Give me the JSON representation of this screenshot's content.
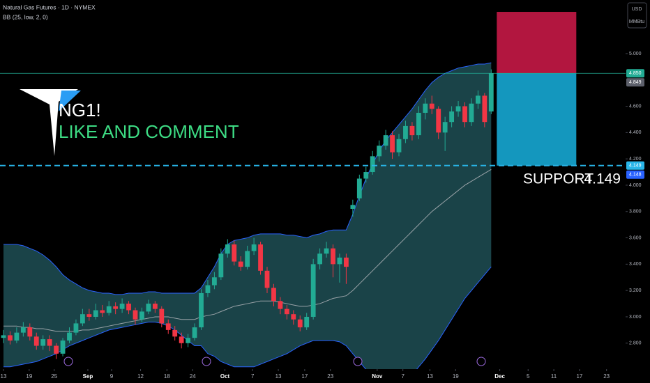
{
  "chart_data": {
    "type": "candlestick",
    "title": "Natural Gas Futures · 1D · NYMEX",
    "indicator": "BB (25, low, 2, 0)",
    "symbol": "NG1!",
    "annotation": "LIKE AND COMMENT",
    "support": {
      "label": "SUPPORT",
      "value": 4.149,
      "color": "#29b6e8"
    },
    "currency": "USD",
    "unit": "MMBtu",
    "up_color": "#22ab94",
    "down_color": "#f23645",
    "open": [
      2.84,
      2.86,
      2.82,
      2.88,
      2.92,
      2.85,
      2.78,
      2.83,
      2.78,
      2.72,
      2.82,
      2.88,
      2.95,
      3.02,
      3.0,
      3.05,
      3.03,
      3.08,
      3.06,
      3.1,
      3.05,
      2.98,
      3.04,
      3.1,
      3.06,
      2.95,
      2.9,
      2.85,
      2.8,
      2.84,
      2.92,
      3.18,
      3.24,
      3.3,
      3.48,
      3.55,
      3.42,
      3.38,
      3.5,
      3.55,
      3.35,
      3.22,
      3.12,
      3.06,
      3.02,
      2.98,
      2.92,
      3.0,
      3.4,
      3.48,
      3.52,
      3.4,
      3.45,
      3.82,
      3.9,
      4.05,
      4.1,
      4.22,
      4.3,
      4.38,
      4.25,
      4.35,
      4.45,
      4.38,
      4.55,
      4.62,
      4.58,
      4.4,
      4.48,
      4.56,
      4.6,
      4.48,
      4.62,
      4.68,
      4.56
    ],
    "high": [
      2.9,
      2.89,
      2.92,
      2.96,
      2.95,
      2.88,
      2.86,
      2.86,
      2.8,
      2.84,
      2.92,
      2.98,
      3.06,
      3.06,
      3.1,
      3.09,
      3.12,
      3.11,
      3.14,
      3.12,
      3.07,
      3.07,
      3.13,
      3.12,
      3.08,
      2.98,
      2.93,
      2.88,
      2.87,
      2.95,
      3.21,
      3.28,
      3.34,
      3.52,
      3.59,
      3.58,
      3.46,
      3.54,
      3.6,
      3.57,
      3.38,
      3.25,
      3.15,
      3.09,
      3.05,
      3.01,
      3.03,
      3.44,
      3.52,
      3.57,
      3.55,
      3.48,
      3.48,
      3.89,
      4.08,
      4.14,
      4.26,
      4.34,
      4.42,
      4.41,
      4.39,
      4.49,
      4.48,
      4.6,
      4.66,
      4.68,
      4.6,
      4.52,
      4.6,
      4.64,
      4.63,
      4.66,
      4.72,
      4.7,
      4.88
    ],
    "low": [
      2.8,
      2.79,
      2.8,
      2.85,
      2.82,
      2.75,
      2.75,
      2.74,
      2.68,
      2.7,
      2.8,
      2.86,
      2.93,
      2.97,
      2.98,
      3.0,
      3.01,
      3.02,
      3.03,
      3.02,
      2.94,
      2.96,
      3.02,
      3.03,
      2.92,
      2.87,
      2.82,
      2.76,
      2.77,
      2.82,
      2.9,
      3.15,
      3.21,
      3.28,
      3.45,
      3.39,
      3.35,
      3.36,
      3.47,
      3.32,
      3.18,
      3.08,
      3.02,
      2.98,
      2.94,
      2.89,
      2.9,
      2.98,
      3.36,
      3.45,
      3.3,
      3.26,
      3.25,
      3.76,
      3.88,
      4.02,
      4.08,
      4.18,
      4.27,
      4.2,
      4.22,
      4.32,
      4.34,
      4.35,
      4.5,
      4.54,
      4.35,
      4.26,
      4.44,
      4.52,
      4.44,
      4.45,
      4.58,
      4.44,
      4.54
    ],
    "close": [
      2.86,
      2.82,
      2.88,
      2.92,
      2.85,
      2.78,
      2.83,
      2.78,
      2.72,
      2.82,
      2.88,
      2.95,
      3.02,
      3.0,
      3.05,
      3.03,
      3.08,
      3.06,
      3.1,
      3.05,
      2.98,
      3.04,
      3.1,
      3.06,
      2.95,
      2.9,
      2.85,
      2.8,
      2.84,
      2.92,
      3.18,
      3.24,
      3.3,
      3.48,
      3.55,
      3.42,
      3.38,
      3.5,
      3.55,
      3.35,
      3.22,
      3.12,
      3.06,
      3.02,
      2.98,
      2.92,
      3.0,
      3.4,
      3.48,
      3.52,
      3.4,
      3.45,
      3.38,
      3.85,
      4.05,
      4.1,
      4.22,
      4.3,
      4.38,
      4.25,
      4.35,
      4.45,
      4.38,
      4.55,
      4.62,
      4.58,
      4.4,
      4.48,
      4.56,
      4.6,
      4.48,
      4.62,
      4.68,
      4.48,
      4.849
    ],
    "bollinger": {
      "line_color": "#2962ff",
      "basis_color": "#9aa3a8",
      "fill": "#1d4a50",
      "upper": [
        3.55,
        3.55,
        3.55,
        3.54,
        3.52,
        3.5,
        3.47,
        3.43,
        3.38,
        3.32,
        3.28,
        3.25,
        3.22,
        3.2,
        3.19,
        3.18,
        3.18,
        3.17,
        3.17,
        3.18,
        3.18,
        3.18,
        3.19,
        3.19,
        3.18,
        3.18,
        3.18,
        3.18,
        3.18,
        3.18,
        3.22,
        3.3,
        3.38,
        3.48,
        3.55,
        3.58,
        3.59,
        3.6,
        3.62,
        3.63,
        3.63,
        3.63,
        3.63,
        3.62,
        3.62,
        3.61,
        3.6,
        3.62,
        3.63,
        3.65,
        3.66,
        3.66,
        3.66,
        3.78,
        3.92,
        4.05,
        4.16,
        4.26,
        4.34,
        4.4,
        4.46,
        4.52,
        4.58,
        4.65,
        4.72,
        4.78,
        4.82,
        4.85,
        4.87,
        4.89,
        4.9,
        4.91,
        4.92,
        4.92,
        4.93
      ],
      "basis": [
        2.93,
        2.93,
        2.93,
        2.92,
        2.92,
        2.91,
        2.91,
        2.9,
        2.89,
        2.89,
        2.89,
        2.89,
        2.9,
        2.9,
        2.91,
        2.92,
        2.93,
        2.94,
        2.95,
        2.96,
        2.97,
        2.98,
        2.99,
        3.0,
        3.0,
        3.0,
        2.99,
        2.98,
        2.98,
        2.98,
        3.0,
        3.01,
        3.02,
        3.04,
        3.06,
        3.08,
        3.09,
        3.1,
        3.11,
        3.12,
        3.12,
        3.12,
        3.11,
        3.1,
        3.09,
        3.08,
        3.08,
        3.09,
        3.1,
        3.12,
        3.14,
        3.15,
        3.16,
        3.2,
        3.25,
        3.3,
        3.35,
        3.4,
        3.45,
        3.5,
        3.55,
        3.6,
        3.65,
        3.7,
        3.75,
        3.8,
        3.84,
        3.88,
        3.92,
        3.96,
        4.0,
        4.03,
        4.06,
        4.09,
        4.12
      ],
      "lower": [
        2.62,
        2.62,
        2.63,
        2.64,
        2.65,
        2.66,
        2.68,
        2.7,
        2.72,
        2.75,
        2.78,
        2.8,
        2.82,
        2.84,
        2.86,
        2.88,
        2.9,
        2.91,
        2.92,
        2.93,
        2.94,
        2.95,
        2.96,
        2.96,
        2.95,
        2.93,
        2.9,
        2.86,
        2.82,
        2.78,
        2.78,
        2.72,
        2.7,
        2.66,
        2.64,
        2.62,
        2.62,
        2.62,
        2.62,
        2.64,
        2.66,
        2.68,
        2.7,
        2.72,
        2.75,
        2.78,
        2.8,
        2.82,
        2.82,
        2.82,
        2.82,
        2.81,
        2.78,
        2.72,
        2.66,
        2.6,
        2.56,
        2.52,
        2.5,
        2.49,
        2.49,
        2.52,
        2.56,
        2.62,
        2.68,
        2.75,
        2.82,
        2.9,
        2.98,
        3.06,
        3.14,
        3.2,
        3.26,
        3.32,
        3.38
      ]
    },
    "position": {
      "entry": 4.85,
      "stop": 5.317,
      "target": 4.149,
      "stop_color": "#b2163f",
      "target_color": "#1497be"
    },
    "price_labels": [
      {
        "value": 4.85,
        "label": "4.850",
        "color": "#22ab94"
      },
      {
        "value": 4.849,
        "label": "4.849",
        "color": "#5d606b"
      },
      {
        "value": 4.149,
        "label": "4.149",
        "color": "#29b6e8"
      },
      {
        "value": 4.148,
        "label": "4.148",
        "color": "#2962ff"
      }
    ],
    "ylim": [
      2.603,
      5.407
    ],
    "xlim": [
      -0.529,
      94.39
    ],
    "yticks": [
      {
        "value": 2.8,
        "label": "2.800"
      },
      {
        "value": 3.0,
        "label": "3.000"
      },
      {
        "value": 3.2,
        "label": "3.200"
      },
      {
        "value": 3.4,
        "label": "3.400"
      },
      {
        "value": 3.6,
        "label": "3.600"
      },
      {
        "value": 3.8,
        "label": "3.800"
      },
      {
        "value": 4.0,
        "label": "4.000"
      },
      {
        "value": 4.2,
        "label": "4.200"
      },
      {
        "value": 4.4,
        "label": "4.400"
      },
      {
        "value": 4.6,
        "label": "4.600"
      },
      {
        "value": 5.0,
        "label": "5.000"
      }
    ],
    "xticks": [
      {
        "value": 0,
        "label": "13"
      },
      {
        "value": 3.9,
        "label": "19"
      },
      {
        "value": 7.7,
        "label": "25"
      },
      {
        "value": 12.8,
        "label": "Sep"
      },
      {
        "value": 16.4,
        "label": "9"
      },
      {
        "value": 20.8,
        "label": "12"
      },
      {
        "value": 24.8,
        "label": "18"
      },
      {
        "value": 28.7,
        "label": "24"
      },
      {
        "value": 33.6,
        "label": "Oct"
      },
      {
        "value": 37.8,
        "label": "7"
      },
      {
        "value": 41.7,
        "label": "13"
      },
      {
        "value": 45.7,
        "label": "17"
      },
      {
        "value": 49.6,
        "label": "23"
      },
      {
        "value": 56.7,
        "label": "Nov"
      },
      {
        "value": 60.6,
        "label": "7"
      },
      {
        "value": 64.7,
        "label": "13"
      },
      {
        "value": 68.6,
        "label": "19"
      },
      {
        "value": 75.3,
        "label": "Dec"
      },
      {
        "value": 79.6,
        "label": "5"
      },
      {
        "value": 83.5,
        "label": "11"
      },
      {
        "value": 87.4,
        "label": "17"
      },
      {
        "value": 91.5,
        "label": "23"
      }
    ]
  }
}
